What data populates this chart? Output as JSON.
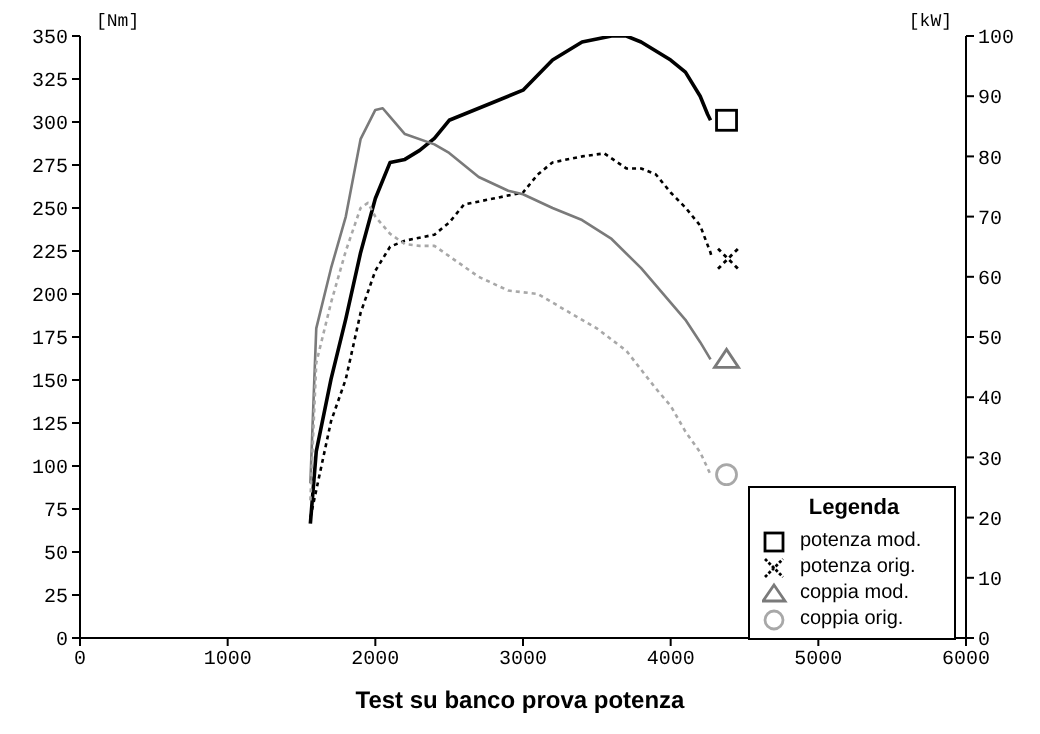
{
  "chart_data": {
    "type": "line",
    "title": "Test su banco prova potenza",
    "ylabel": "[Nm]",
    "y2label": "[kW]",
    "legend_title": "Legenda",
    "legend": "bottom right",
    "grid": false,
    "xlim": [
      0,
      6000
    ],
    "xticks": [
      0,
      1000,
      2000,
      3000,
      4000,
      5000,
      6000
    ],
    "ylim": [
      0,
      350
    ],
    "yticks": [
      0,
      25,
      50,
      75,
      100,
      125,
      150,
      175,
      200,
      225,
      250,
      275,
      300,
      325,
      350
    ],
    "y2lim": [
      0,
      100
    ],
    "y2ticks": [
      0,
      10,
      20,
      30,
      40,
      50,
      60,
      70,
      80,
      90,
      100
    ],
    "series": [
      {
        "name": "potenza mod.",
        "axis": "y2",
        "color": "#000000",
        "line_style": "solid",
        "x": [
          1560,
          1600,
          1700,
          1800,
          1900,
          2000,
          2100,
          2200,
          2300,
          2400,
          2500,
          2600,
          2800,
          3000,
          3200,
          3400,
          3600,
          3700,
          3800,
          4000,
          4100,
          4200,
          4250,
          4270
        ],
        "values": [
          19,
          31,
          43,
          53,
          64,
          73,
          79,
          79.5,
          81,
          83,
          86,
          87,
          89,
          91,
          96,
          99,
          100,
          100,
          99,
          96,
          94,
          90,
          87,
          86
        ]
      },
      {
        "name": "potenza orig.",
        "axis": "y2",
        "color": "#000000",
        "line_style": "dotted",
        "x": [
          1560,
          1700,
          1800,
          1900,
          2000,
          2100,
          2200,
          2400,
          2500,
          2600,
          2800,
          3000,
          3100,
          3200,
          3400,
          3550,
          3700,
          3800,
          3900,
          4000,
          4100,
          4200,
          4270,
          4280
        ],
        "values": [
          20,
          36,
          43,
          54,
          61,
          65,
          66,
          67,
          69,
          72,
          73,
          74,
          77,
          79,
          80,
          80.5,
          78,
          78,
          77,
          74,
          71.5,
          68.5,
          64,
          63
        ]
      },
      {
        "name": "coppia mod.",
        "color": "#7a7a7a",
        "line_style": "solid",
        "x": [
          1560,
          1600,
          1700,
          1800,
          1900,
          2000,
          2050,
          2100,
          2200,
          2400,
          2500,
          2700,
          2900,
          3000,
          3200,
          3400,
          3600,
          3800,
          4000,
          4100,
          4200,
          4270
        ],
        "values": [
          90,
          180,
          215,
          245,
          290,
          307,
          308,
          303,
          293,
          287,
          282,
          268,
          260,
          258,
          250,
          243,
          232,
          215,
          195,
          185,
          172,
          162
        ]
      },
      {
        "name": "coppia orig.",
        "color": "#a8a8a8",
        "line_style": "dotted",
        "x": [
          1560,
          1600,
          1700,
          1800,
          1900,
          1950,
          2000,
          2100,
          2200,
          2300,
          2400,
          2500,
          2700,
          2900,
          3000,
          3100,
          3300,
          3500,
          3700,
          3900,
          4000,
          4100,
          4200,
          4270
        ],
        "values": [
          80,
          160,
          195,
          225,
          250,
          253,
          245,
          235,
          229,
          228,
          228,
          222,
          210,
          202,
          201,
          200,
          190,
          180,
          167,
          145,
          135,
          120,
          108,
          95
        ]
      }
    ]
  }
}
